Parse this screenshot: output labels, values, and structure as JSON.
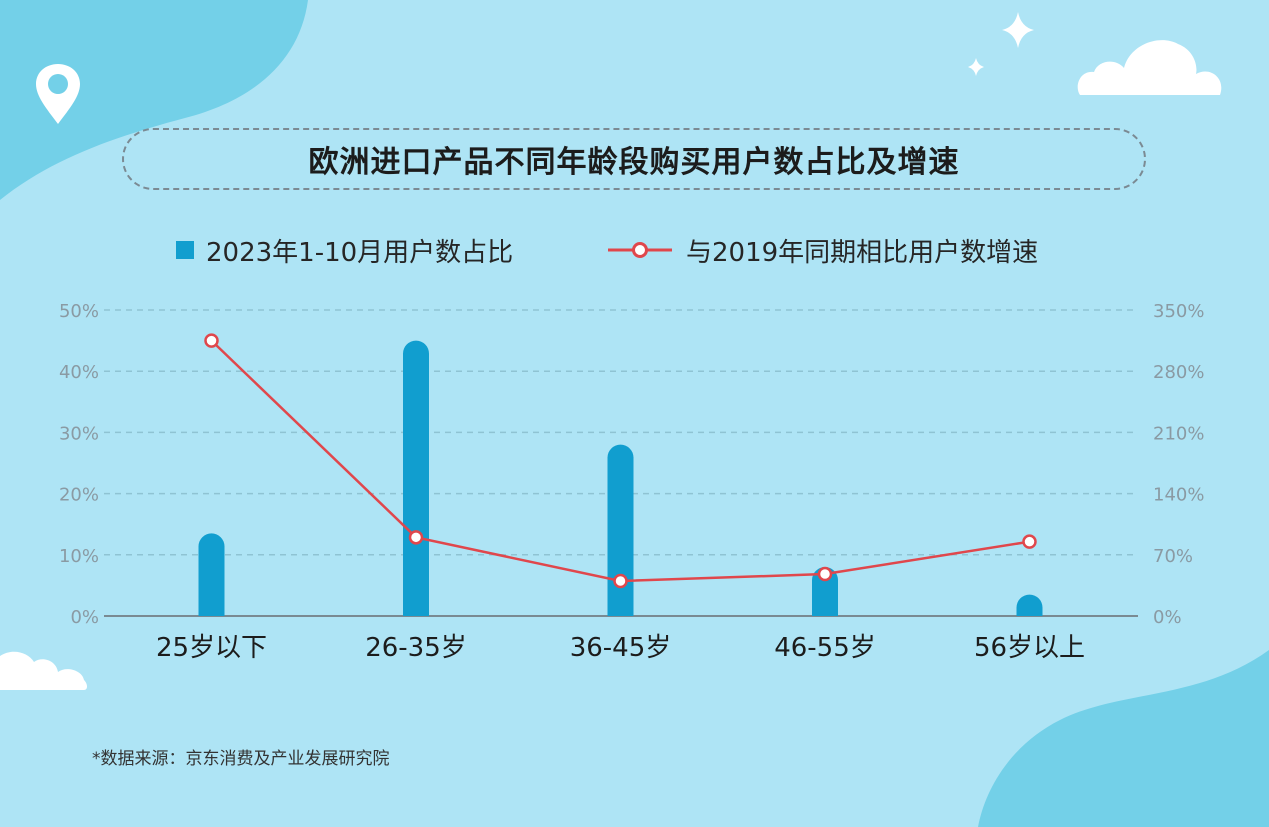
{
  "colors": {
    "background": "#aee4f5",
    "blob": "#73d0e8",
    "bar": "#119ecf",
    "line": "#e0474c",
    "grid": "#8fc3d3",
    "axis": "#7a8a92",
    "cloud": "#ffffff"
  },
  "icons": {
    "pin": "location-pin-icon",
    "sparkle": "sparkle-icon",
    "cloud": "cloud-icon"
  },
  "title": "欧洲进口产品不同年龄段购买用户数占比及增速",
  "source": "*数据来源：京东消费及产业发展研究院",
  "chart_data": {
    "type": "bar",
    "categories": [
      "25岁以下",
      "26-35岁",
      "36-45岁",
      "46-55岁",
      "56岁以上"
    ],
    "series": [
      {
        "name": "2023年1-10月用户数占比",
        "type": "bar",
        "axis": "left",
        "values": [
          13.5,
          45,
          28,
          8,
          3.5
        ]
      },
      {
        "name": "与2019年同期相比用户数增速",
        "type": "line",
        "axis": "right",
        "values": [
          315,
          90,
          40,
          48,
          85
        ]
      }
    ],
    "y_left": {
      "ticks": [
        "50%",
        "40%",
        "30%",
        "20%",
        "10%",
        "0%"
      ],
      "range": [
        0,
        50
      ]
    },
    "y_right": {
      "ticks": [
        "350%",
        "280%",
        "210%",
        "140%",
        "70%",
        "0%"
      ],
      "range": [
        0,
        350
      ]
    },
    "grid": true,
    "legend": "top-center"
  }
}
